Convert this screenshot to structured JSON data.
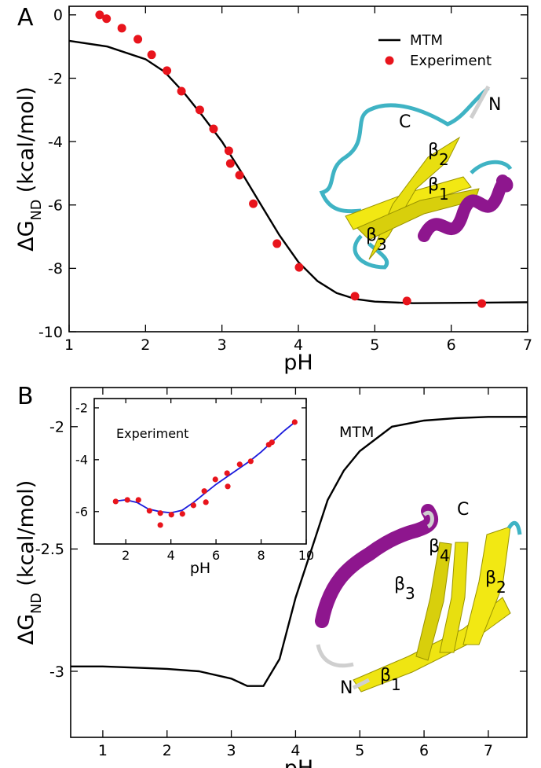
{
  "chart_data": [
    {
      "type": "line",
      "label": "A",
      "xlabel": "pH",
      "ylabel": [
        "ΔG",
        "ND",
        " (kcal/mol)"
      ],
      "xlim": [
        1,
        7
      ],
      "ylim": [
        -10,
        0.27
      ],
      "xticks": [
        1,
        2,
        3,
        4,
        5,
        6,
        7
      ],
      "yticks": [
        0,
        -2,
        -4,
        -6,
        -8,
        -10
      ],
      "legend": "upper right",
      "series": [
        {
          "name": "MTM",
          "color": "#000000",
          "style": "line",
          "x": [
            1,
            1.5,
            2,
            2.25,
            2.5,
            2.75,
            3,
            3.25,
            3.5,
            3.75,
            4,
            4.25,
            4.5,
            4.75,
            5,
            5.5,
            6,
            7
          ],
          "values": [
            -0.82,
            -1.0,
            -1.4,
            -1.8,
            -2.45,
            -3.2,
            -4.0,
            -4.95,
            -5.95,
            -6.95,
            -7.8,
            -8.4,
            -8.78,
            -8.97,
            -9.05,
            -9.1,
            -9.09,
            -9.07
          ]
        },
        {
          "name": "Experiment",
          "color": "#e8141c",
          "style": "points",
          "x": [
            1.4,
            1.49,
            1.69,
            1.9,
            2.08,
            2.28,
            2.47,
            2.71,
            2.89,
            3.09,
            3.11,
            3.23,
            3.41,
            3.72,
            4.01,
            4.74,
            5.42,
            6.4
          ],
          "values": [
            0.0,
            -0.12,
            -0.42,
            -0.77,
            -1.26,
            -1.76,
            -2.41,
            -3.0,
            -3.6,
            -4.29,
            -4.69,
            -5.06,
            -5.96,
            -7.22,
            -7.97,
            -8.88,
            -9.03,
            -9.11
          ]
        }
      ],
      "annotations": [
        {
          "text": "N"
        },
        {
          "text": "C"
        },
        {
          "text": "β",
          "sub": "2"
        },
        {
          "text": "β",
          "sub": "1"
        },
        {
          "text": "β",
          "sub": "3"
        }
      ]
    },
    {
      "type": "line",
      "label": "B",
      "xlabel": "pH",
      "ylabel": [
        "ΔG",
        "ND",
        " (kcal/mol)"
      ],
      "xlim": [
        0.5,
        7.6
      ],
      "ylim": [
        -3.27,
        -1.84
      ],
      "xticks": [
        1,
        2,
        3,
        4,
        5,
        6,
        7
      ],
      "yticks": [
        -2,
        -2.5,
        -3
      ],
      "legend": false,
      "series": [
        {
          "name": "MTM",
          "color": "#000000",
          "style": "line",
          "x": [
            0.5,
            1,
            1.5,
            2,
            2.5,
            3,
            3.25,
            3.5,
            3.75,
            4,
            4.25,
            4.5,
            4.75,
            5,
            5.5,
            6,
            6.5,
            7,
            7.6
          ],
          "values": [
            -2.98,
            -2.98,
            -2.985,
            -2.99,
            -3.0,
            -3.03,
            -3.06,
            -3.06,
            -2.95,
            -2.7,
            -2.5,
            -2.3,
            -2.18,
            -2.1,
            -2.0,
            -1.975,
            -1.965,
            -1.96,
            -1.96
          ]
        }
      ],
      "annotations": [
        {
          "text": "C"
        },
        {
          "text": "β",
          "sub": "4"
        },
        {
          "text": "β",
          "sub": "3"
        },
        {
          "text": "β",
          "sub": "2"
        },
        {
          "text": "β",
          "sub": "1"
        },
        {
          "text": "N"
        }
      ]
    },
    {
      "type": "line",
      "xlabel": "pH",
      "xlim": [
        0.6,
        10
      ],
      "ylim": [
        -7.25,
        -1.64
      ],
      "xticks": [
        2,
        4,
        6,
        8,
        10
      ],
      "yticks": [
        -2,
        -4,
        -6
      ],
      "legend": false,
      "series": [
        {
          "color": "#1a1adc",
          "style": "line",
          "x": [
            1.5,
            2,
            2.5,
            3,
            3.5,
            4,
            4.5,
            5,
            5.5,
            6,
            6.5,
            7,
            7.5,
            8,
            8.5,
            9,
            9.5
          ],
          "values": [
            -5.6,
            -5.55,
            -5.65,
            -5.9,
            -6.0,
            -6.05,
            -5.95,
            -5.65,
            -5.3,
            -4.95,
            -4.65,
            -4.35,
            -4.05,
            -3.7,
            -3.3,
            -2.9,
            -2.55
          ]
        },
        {
          "name": "Experiment",
          "color": "#e8141c",
          "style": "points",
          "x": [
            1.55,
            2.07,
            2.56,
            3.05,
            3.53,
            3.53,
            4.02,
            4.51,
            5.0,
            5.48,
            5.55,
            5.97,
            6.49,
            6.52,
            7.05,
            7.54,
            8.34,
            8.48,
            9.49
          ],
          "values": [
            -5.61,
            -5.55,
            -5.55,
            -5.97,
            -6.06,
            -6.52,
            -6.12,
            -6.09,
            -5.76,
            -5.21,
            -5.64,
            -4.76,
            -4.52,
            -5.03,
            -4.18,
            -4.06,
            -3.42,
            -3.33,
            -2.55
          ]
        }
      ]
    }
  ]
}
